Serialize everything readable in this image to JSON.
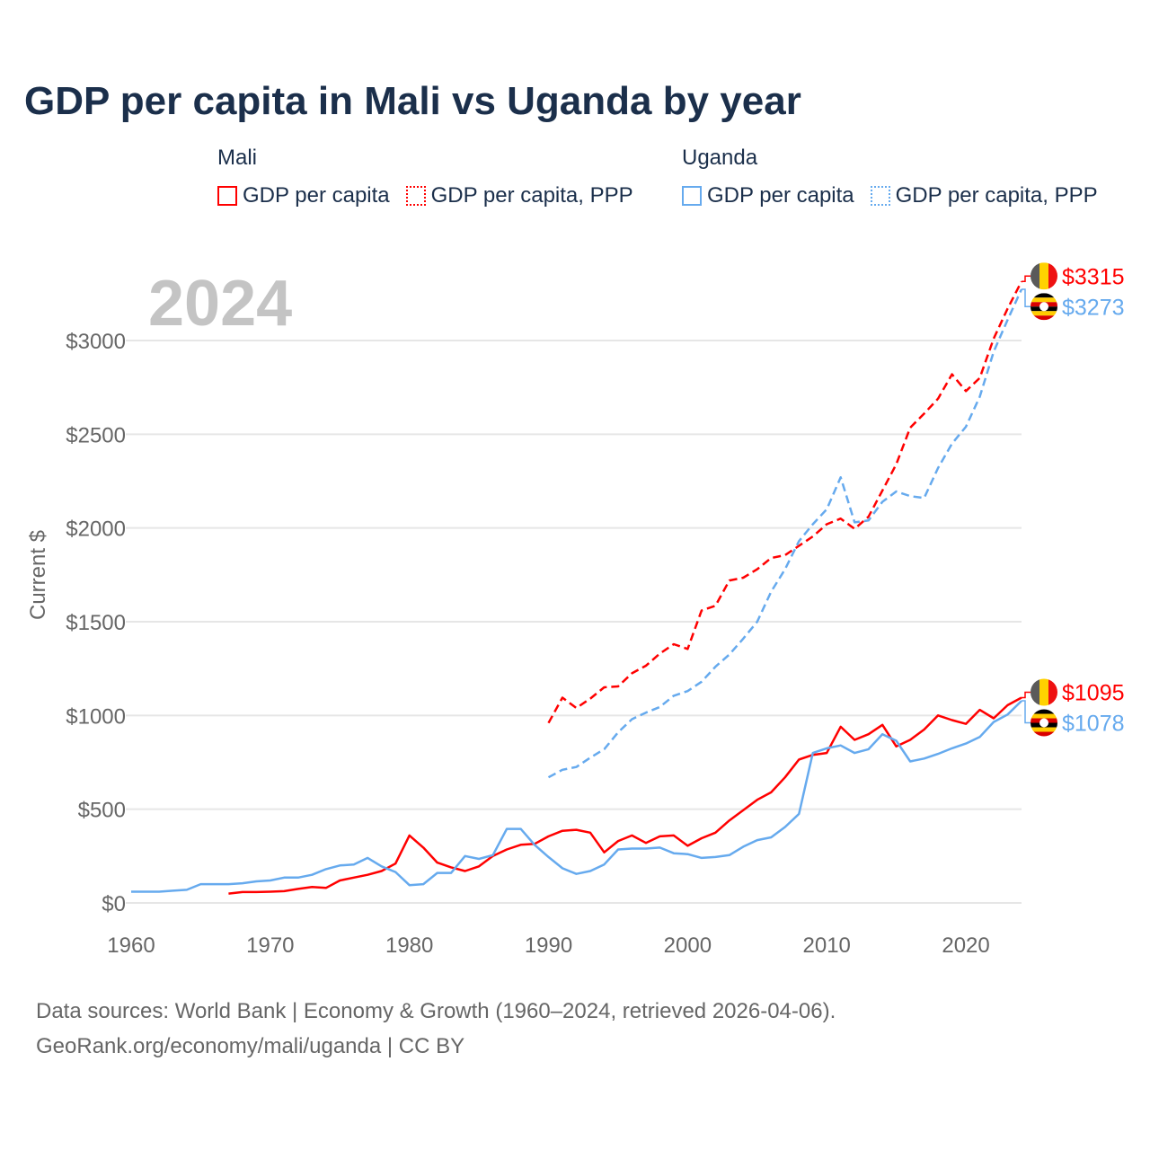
{
  "chart_data": {
    "type": "line",
    "title": "GDP per capita in Mali vs Uganda by year",
    "xlabel": "",
    "ylabel": "Current $",
    "xlim": [
      1960,
      2024
    ],
    "ylim": [
      0,
      3400
    ],
    "xticks": [
      1960,
      1970,
      1980,
      1990,
      2000,
      2010,
      2020
    ],
    "xtick_labels": [
      "1960",
      "1970",
      "1980",
      "1990",
      "2000",
      "2010",
      "2020"
    ],
    "yticks": [
      0,
      500,
      1000,
      1500,
      2000,
      2500,
      3000
    ],
    "ytick_labels": [
      "$0",
      "$500",
      "$1000",
      "$1500",
      "$2000",
      "$2500",
      "$3000"
    ],
    "grid": true,
    "year_watermark": "2024",
    "legend": {
      "placement": "top",
      "groups": [
        {
          "name": "Mali",
          "items": [
            "GDP per capita",
            "GDP per capita, PPP"
          ]
        },
        {
          "name": "Uganda",
          "items": [
            "GDP per capita",
            "GDP per capita, PPP"
          ]
        }
      ]
    },
    "series": [
      {
        "name": "Mali GDP per capita",
        "country": "Mali",
        "style": "solid",
        "color": "#ff0000",
        "end_label": "$1095",
        "x": [
          1967,
          1968,
          1969,
          1970,
          1971,
          1972,
          1973,
          1974,
          1975,
          1976,
          1977,
          1978,
          1979,
          1980,
          1981,
          1982,
          1983,
          1984,
          1985,
          1986,
          1987,
          1988,
          1989,
          1990,
          1991,
          1992,
          1993,
          1994,
          1995,
          1996,
          1997,
          1998,
          1999,
          2000,
          2001,
          2002,
          2003,
          2004,
          2005,
          2006,
          2007,
          2008,
          2009,
          2010,
          2011,
          2012,
          2013,
          2014,
          2015,
          2016,
          2017,
          2018,
          2019,
          2020,
          2021,
          2022,
          2023,
          2024
        ],
        "values": [
          50,
          58,
          58,
          60,
          63,
          75,
          85,
          80,
          120,
          135,
          150,
          170,
          210,
          360,
          295,
          215,
          190,
          170,
          195,
          250,
          285,
          310,
          315,
          355,
          385,
          390,
          375,
          270,
          330,
          360,
          320,
          355,
          360,
          305,
          345,
          375,
          440,
          495,
          550,
          590,
          670,
          765,
          790,
          800,
          940,
          870,
          900,
          950,
          835,
          870,
          925,
          1000,
          975,
          955,
          1030,
          985,
          1055,
          1095
        ]
      },
      {
        "name": "Mali GDP per capita, PPP",
        "country": "Mali",
        "style": "dashed",
        "color": "#ff0000",
        "end_label": "$3315",
        "x": [
          1990,
          1991,
          1992,
          1993,
          1994,
          1995,
          1996,
          1997,
          1998,
          1999,
          2000,
          2001,
          2002,
          2003,
          2004,
          2005,
          2006,
          2007,
          2008,
          2009,
          2010,
          2011,
          2012,
          2013,
          2014,
          2015,
          2016,
          2017,
          2018,
          2019,
          2020,
          2021,
          2022,
          2023,
          2024
        ],
        "values": [
          960,
          1095,
          1040,
          1090,
          1150,
          1155,
          1225,
          1265,
          1330,
          1380,
          1355,
          1560,
          1585,
          1720,
          1735,
          1780,
          1840,
          1855,
          1905,
          1955,
          2020,
          2050,
          1995,
          2060,
          2200,
          2340,
          2535,
          2610,
          2690,
          2820,
          2730,
          2800,
          3010,
          3170,
          3315
        ]
      },
      {
        "name": "Uganda GDP per capita",
        "country": "Uganda",
        "style": "solid",
        "color": "#66aaee",
        "end_label": "$1078",
        "x": [
          1960,
          1961,
          1962,
          1963,
          1964,
          1965,
          1966,
          1967,
          1968,
          1969,
          1970,
          1971,
          1972,
          1973,
          1974,
          1975,
          1976,
          1977,
          1978,
          1979,
          1980,
          1981,
          1982,
          1983,
          1984,
          1985,
          1986,
          1987,
          1988,
          1989,
          1990,
          1991,
          1992,
          1993,
          1994,
          1995,
          1996,
          1997,
          1998,
          1999,
          2000,
          2001,
          2002,
          2003,
          2004,
          2005,
          2006,
          2007,
          2008,
          2009,
          2010,
          2011,
          2012,
          2013,
          2014,
          2015,
          2016,
          2017,
          2018,
          2019,
          2020,
          2021,
          2022,
          2023,
          2024
        ],
        "values": [
          60,
          60,
          60,
          65,
          70,
          100,
          100,
          100,
          105,
          115,
          120,
          135,
          135,
          150,
          180,
          200,
          205,
          240,
          195,
          165,
          95,
          100,
          160,
          160,
          250,
          235,
          255,
          395,
          395,
          310,
          245,
          185,
          155,
          170,
          205,
          285,
          290,
          290,
          295,
          265,
          260,
          240,
          245,
          255,
          300,
          335,
          350,
          405,
          475,
          800,
          825,
          840,
          800,
          820,
          900,
          865,
          755,
          770,
          795,
          825,
          850,
          885,
          965,
          1005,
          1078
        ]
      },
      {
        "name": "Uganda GDP per capita, PPP",
        "country": "Uganda",
        "style": "dashed",
        "color": "#66aaee",
        "end_label": "$3273",
        "x": [
          1990,
          1991,
          1992,
          1993,
          1994,
          1995,
          1996,
          1997,
          1998,
          1999,
          2000,
          2001,
          2002,
          2003,
          2004,
          2005,
          2006,
          2007,
          2008,
          2009,
          2010,
          2011,
          2012,
          2013,
          2014,
          2015,
          2016,
          2017,
          2018,
          2019,
          2020,
          2021,
          2022,
          2023,
          2024
        ],
        "values": [
          670,
          710,
          725,
          775,
          820,
          910,
          980,
          1015,
          1045,
          1105,
          1130,
          1180,
          1260,
          1325,
          1410,
          1500,
          1660,
          1780,
          1930,
          2020,
          2100,
          2270,
          2030,
          2040,
          2140,
          2195,
          2170,
          2160,
          2320,
          2450,
          2540,
          2700,
          2940,
          3110,
          3273
        ]
      }
    ]
  },
  "colors": {
    "mali": "#ff0000",
    "uganda": "#66aaee",
    "title": "#1b2f4b"
  },
  "footer": {
    "line1": "Data sources: World Bank | Economy & Growth (1960–2024, retrieved 2026-04-06).",
    "line2": "GeoRank.org/economy/mali/uganda | CC BY"
  }
}
